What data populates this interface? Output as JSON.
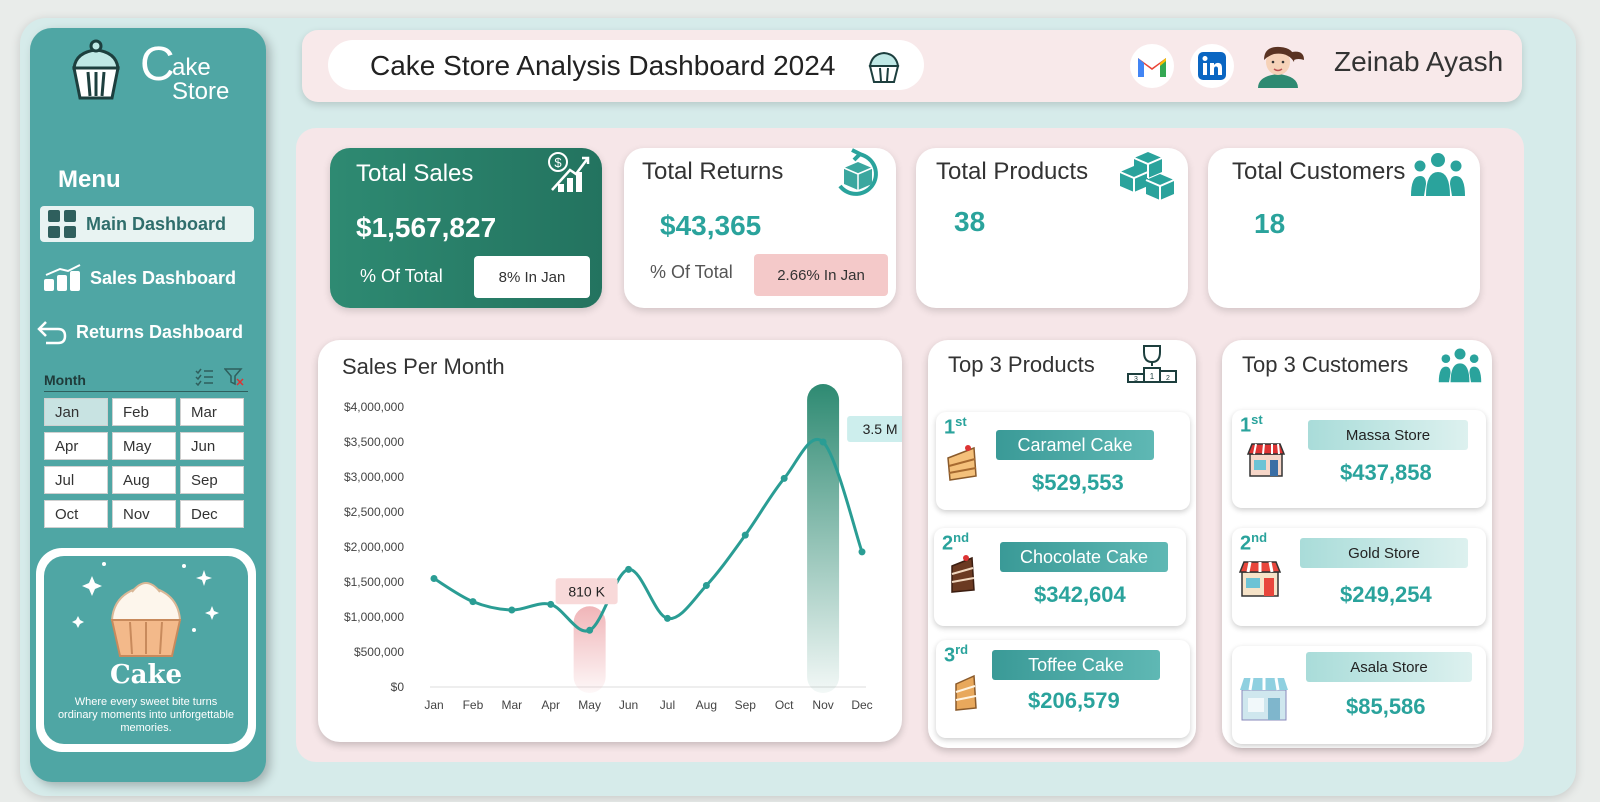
{
  "brand": {
    "c": "C",
    "ake": "ake",
    "store": "Store"
  },
  "menu": {
    "title": "Menu",
    "items": [
      {
        "label": "Main Dashboard",
        "icon": "grid-icon",
        "active": true
      },
      {
        "label": "Sales Dashboard",
        "icon": "bar-chart-icon",
        "active": false
      },
      {
        "label": "Returns Dashboard",
        "icon": "return-arrow-icon",
        "active": false
      }
    ]
  },
  "slicer": {
    "title": "Month",
    "months": [
      "Jan",
      "Feb",
      "Mar",
      "Apr",
      "May",
      "Jun",
      "Jul",
      "Aug",
      "Sep",
      "Oct",
      "Nov",
      "Dec"
    ],
    "selected": "Jan"
  },
  "promo": {
    "title": "Cake",
    "tagline": "Where every sweet bite turns ordinary moments into unforgettable memories."
  },
  "header": {
    "title": "Cake Store Analysis Dashboard 2024",
    "user": "Zeinab Ayash"
  },
  "kpis": {
    "sales": {
      "label": "Total Sales",
      "value": "$1,567,827",
      "sub": "% Of Total",
      "badge": "8%  In Jan"
    },
    "returns": {
      "label": "Total Returns",
      "value": "$43,365",
      "sub": "% Of Total",
      "badge": "2.66%  In Jan"
    },
    "products": {
      "label": "Total Products",
      "value": "38"
    },
    "customers": {
      "label": "Total Customers",
      "value": "18"
    }
  },
  "chart_data": {
    "type": "line",
    "title": "Sales Per Month",
    "categories": [
      "Jan",
      "Feb",
      "Mar",
      "Apr",
      "May",
      "Jun",
      "Jul",
      "Aug",
      "Sep",
      "Oct",
      "Nov",
      "Dec"
    ],
    "values": [
      1550000,
      1220000,
      1100000,
      1180000,
      810000,
      1680000,
      980000,
      1450000,
      2170000,
      2980000,
      3500000,
      1930000
    ],
    "ylim": [
      0,
      4000000
    ],
    "yticks": [
      "$0",
      "$500,000",
      "$1,000,000",
      "$1,500,000",
      "$2,000,000",
      "$2,500,000",
      "$3,000,000",
      "$3,500,000",
      "$4,000,000"
    ],
    "annotations": [
      {
        "label": "810 K",
        "category": "May"
      },
      {
        "label": "3.5 M",
        "category": "Nov"
      }
    ],
    "colors": {
      "line": "#2a9d94",
      "max_bar": "#2e8a72",
      "min_bar": "#f0b5b8"
    }
  },
  "top_products": {
    "title": "Top 3 Products",
    "items": [
      {
        "rank": "1",
        "suffix": "st",
        "name": "Caramel Cake",
        "amount": "$529,553"
      },
      {
        "rank": "2",
        "suffix": "nd",
        "name": "Chocolate Cake",
        "amount": "$342,604"
      },
      {
        "rank": "3",
        "suffix": "rd",
        "name": "Toffee Cake",
        "amount": "$206,579"
      }
    ]
  },
  "top_customers": {
    "title": "Top 3 Customers",
    "items": [
      {
        "rank": "1",
        "suffix": "st",
        "name": "Massa Store",
        "amount": "$437,858"
      },
      {
        "rank": "2",
        "suffix": "nd",
        "name": "Gold Store",
        "amount": "$249,254"
      },
      {
        "name": "Asala Store",
        "amount": "$85,586"
      }
    ]
  },
  "colors": {
    "teal": "#4fa6a4",
    "accent": "#2aa39c",
    "pink": "#f6e6e8",
    "green": "#2e8a72"
  }
}
